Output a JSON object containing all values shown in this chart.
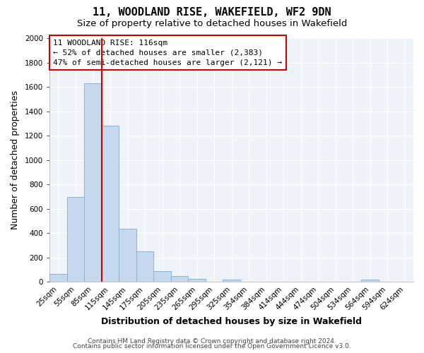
{
  "title": "11, WOODLAND RISE, WAKEFIELD, WF2 9DN",
  "subtitle": "Size of property relative to detached houses in Wakefield",
  "xlabel": "Distribution of detached houses by size in Wakefield",
  "ylabel": "Number of detached properties",
  "bar_labels": [
    "25sqm",
    "55sqm",
    "85sqm",
    "115sqm",
    "145sqm",
    "175sqm",
    "205sqm",
    "235sqm",
    "265sqm",
    "295sqm",
    "325sqm",
    "354sqm",
    "384sqm",
    "414sqm",
    "444sqm",
    "474sqm",
    "504sqm",
    "534sqm",
    "564sqm",
    "594sqm",
    "624sqm"
  ],
  "bar_values": [
    65,
    695,
    1630,
    1280,
    435,
    252,
    88,
    50,
    28,
    0,
    18,
    0,
    0,
    0,
    0,
    0,
    0,
    0,
    20,
    0,
    0
  ],
  "bar_color": "#c5d8ed",
  "bar_edge_color": "#8ab4d4",
  "vline_color": "#cc0000",
  "vline_position": 2.5,
  "ylim": [
    0,
    2000
  ],
  "yticks": [
    0,
    200,
    400,
    600,
    800,
    1000,
    1200,
    1400,
    1600,
    1800,
    2000
  ],
  "annotation_line1": "11 WOODLAND RISE: 116sqm",
  "annotation_line2": "← 52% of detached houses are smaller (2,383)",
  "annotation_line3": "47% of semi-detached houses are larger (2,121) →",
  "annotation_box_color": "#ffffff",
  "annotation_box_edge_color": "#cc0000",
  "footer_line1": "Contains HM Land Registry data © Crown copyright and database right 2024.",
  "footer_line2": "Contains public sector information licensed under the Open Government Licence v3.0.",
  "plot_bg_color": "#eef2f9",
  "fig_bg_color": "#ffffff",
  "grid_color": "#ffffff",
  "title_fontsize": 11,
  "subtitle_fontsize": 9.5,
  "axis_label_fontsize": 9,
  "tick_fontsize": 7.5,
  "annotation_fontsize": 8,
  "footer_fontsize": 6.5
}
